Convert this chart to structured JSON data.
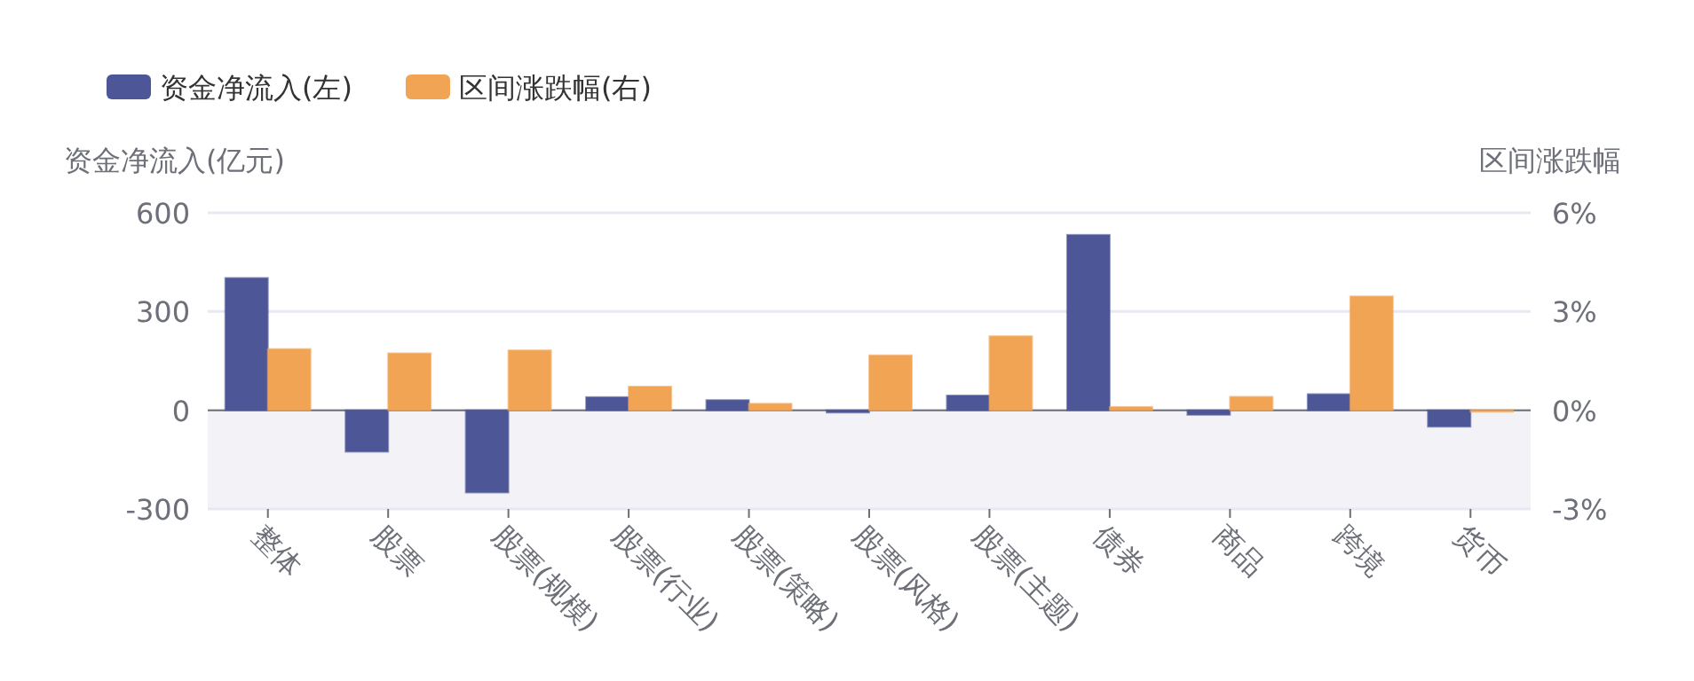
{
  "chart_data": {
    "type": "bar",
    "ylabel": "资金净流入(亿元)",
    "y2label": "区间涨跌幅",
    "categories": [
      "整体",
      "股票",
      "股票(规模)",
      "股票(行业)",
      "股票(策略)",
      "股票(风格)",
      "股票(主题)",
      "债券",
      "商品",
      "跨境",
      "货币"
    ],
    "series": [
      {
        "name": "资金净流入(左)",
        "color": "#4d5797",
        "values": [
          402,
          -126,
          -250,
          40,
          31,
          -7,
          45,
          533,
          -14,
          49,
          -50
        ]
      },
      {
        "name": "区间涨跌幅(右)",
        "color": "#f2a455",
        "axis": "y2",
        "values": [
          1.86,
          1.73,
          1.82,
          0.72,
          0.2,
          1.67,
          2.25,
          0.1,
          0.41,
          3.46,
          0
        ]
      }
    ],
    "ylim": [
      -300,
      600
    ],
    "yticks": [
      -300,
      0,
      300,
      600
    ],
    "y2lim": [
      -3,
      6
    ],
    "y2ticks": [
      {
        "value": -3,
        "label": "-3%"
      },
      {
        "value": 0,
        "label": "0%"
      },
      {
        "value": 3,
        "label": "3%"
      },
      {
        "value": 6,
        "label": "6%"
      }
    ],
    "bands": [
      {
        "axis": "y",
        "from": -300,
        "to": 0,
        "color": "#f3f3f7"
      }
    ],
    "grid": "y",
    "legend": "top left"
  }
}
